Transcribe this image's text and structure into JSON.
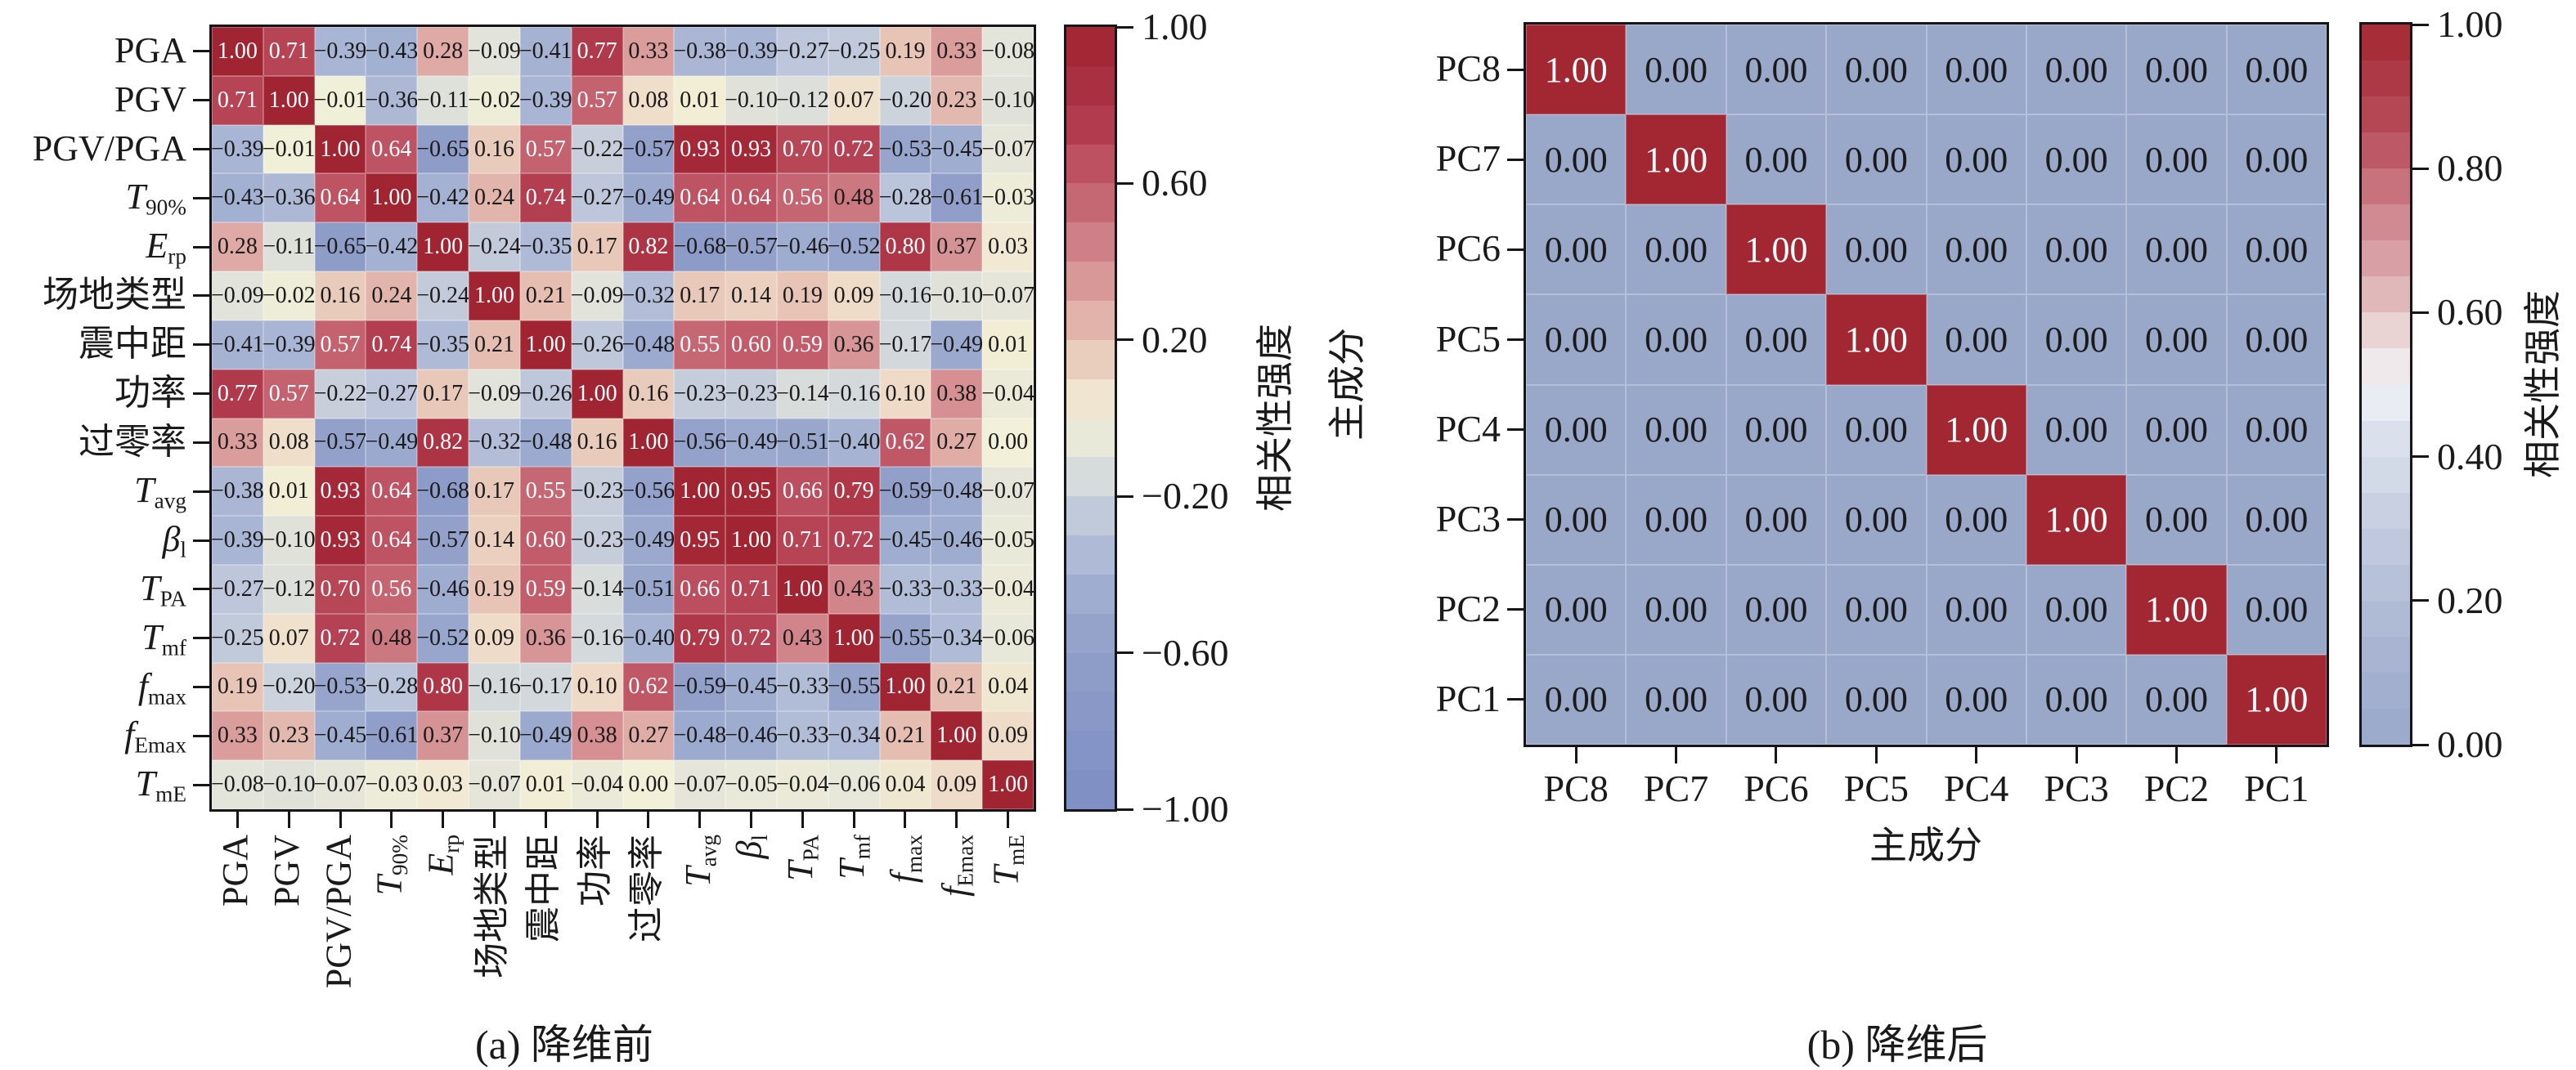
{
  "figure": {
    "caption_a": "(a) 降维前",
    "caption_b": "(b) 降维后",
    "colorbar_label_a": "相关性强度",
    "colorbar_label_b": "相关性强度",
    "xlabel_b": "主成分",
    "ylabel_b": "主成分"
  },
  "chart_data": [
    {
      "type": "heatmap",
      "title": "(a) 降维前",
      "colorbar_label": "相关性强度",
      "vmin": -1,
      "vmax": 1,
      "colorbar_ticks": [
        1.0,
        0.6,
        0.2,
        -0.2,
        -0.6,
        -1.0
      ],
      "white_text_min": 0.55,
      "colormap_anchors": [
        [
          -1.0,
          "#7e8ec4"
        ],
        [
          -0.6,
          "#909ec9"
        ],
        [
          -0.45,
          "#9fadd0"
        ],
        [
          -0.3,
          "#b6c0d9"
        ],
        [
          -0.2,
          "#ccd3dc"
        ],
        [
          -0.1,
          "#e0e2da"
        ],
        [
          0.0,
          "#f2f0d8"
        ],
        [
          0.1,
          "#eedac7"
        ],
        [
          0.2,
          "#e6c1b3"
        ],
        [
          0.3,
          "#dda4a1"
        ],
        [
          0.45,
          "#cf7f87"
        ],
        [
          0.6,
          "#c25b6a"
        ],
        [
          0.75,
          "#b23c4e"
        ],
        [
          0.9,
          "#a52a39"
        ],
        [
          1.0,
          "#a02431"
        ]
      ],
      "axis_labels": [
        [
          "PGA",
          "",
          0
        ],
        [
          "PGV",
          "",
          0
        ],
        [
          "PGV/PGA",
          "",
          0
        ],
        [
          "T",
          "90%",
          1
        ],
        [
          "E",
          "rp",
          1
        ],
        [
          "场地类型",
          "",
          0
        ],
        [
          "震中距",
          "",
          0
        ],
        [
          "功率",
          "",
          0
        ],
        [
          "过零率",
          "",
          0
        ],
        [
          "T",
          "avg",
          1
        ],
        [
          "β",
          "l",
          1
        ],
        [
          "T",
          "PA",
          1
        ],
        [
          "T",
          "mf",
          1
        ],
        [
          "f",
          "max",
          1
        ],
        [
          "f",
          "Emax",
          1
        ],
        [
          "T",
          "mE",
          1
        ]
      ],
      "matrix": [
        [
          1.0,
          0.71,
          -0.39,
          -0.43,
          0.28,
          -0.09,
          -0.41,
          0.77,
          0.33,
          -0.38,
          -0.39,
          -0.27,
          -0.25,
          0.19,
          0.33,
          -0.08
        ],
        [
          0.71,
          1.0,
          -0.01,
          -0.36,
          -0.11,
          -0.02,
          -0.39,
          0.57,
          0.08,
          0.01,
          -0.1,
          -0.12,
          0.07,
          -0.2,
          0.23,
          -0.1
        ],
        [
          -0.39,
          -0.01,
          1.0,
          0.64,
          -0.65,
          0.16,
          0.57,
          -0.22,
          -0.57,
          0.93,
          0.93,
          0.7,
          0.72,
          -0.53,
          -0.45,
          -0.07
        ],
        [
          -0.43,
          -0.36,
          0.64,
          1.0,
          -0.42,
          0.24,
          0.74,
          -0.27,
          -0.49,
          0.64,
          0.64,
          0.56,
          0.48,
          -0.28,
          -0.61,
          -0.03
        ],
        [
          0.28,
          -0.11,
          -0.65,
          -0.42,
          1.0,
          -0.24,
          -0.35,
          0.17,
          0.82,
          -0.68,
          -0.57,
          -0.46,
          -0.52,
          0.8,
          0.37,
          0.03
        ],
        [
          -0.09,
          -0.02,
          0.16,
          0.24,
          -0.24,
          1.0,
          0.21,
          -0.09,
          -0.32,
          0.17,
          0.14,
          0.19,
          0.09,
          -0.16,
          -0.1,
          -0.07
        ],
        [
          -0.41,
          -0.39,
          0.57,
          0.74,
          -0.35,
          0.21,
          1.0,
          -0.26,
          -0.48,
          0.55,
          0.6,
          0.59,
          0.36,
          -0.17,
          -0.49,
          0.01
        ],
        [
          0.77,
          0.57,
          -0.22,
          -0.27,
          0.17,
          -0.09,
          -0.26,
          1.0,
          0.16,
          -0.23,
          -0.23,
          -0.14,
          -0.16,
          0.1,
          0.38,
          -0.04
        ],
        [
          0.33,
          0.08,
          -0.57,
          -0.49,
          0.82,
          -0.32,
          -0.48,
          0.16,
          1.0,
          -0.56,
          -0.49,
          -0.51,
          -0.4,
          0.62,
          0.27,
          0.0
        ],
        [
          -0.38,
          0.01,
          0.93,
          0.64,
          -0.68,
          0.17,
          0.55,
          -0.23,
          -0.56,
          1.0,
          0.95,
          0.66,
          0.79,
          -0.59,
          -0.48,
          -0.07
        ],
        [
          -0.39,
          -0.1,
          0.93,
          0.64,
          -0.57,
          0.14,
          0.6,
          -0.23,
          -0.49,
          0.95,
          1.0,
          0.71,
          0.72,
          -0.45,
          -0.46,
          -0.05
        ],
        [
          -0.27,
          -0.12,
          0.7,
          0.56,
          -0.46,
          0.19,
          0.59,
          -0.14,
          -0.51,
          0.66,
          0.71,
          1.0,
          0.43,
          -0.33,
          -0.33,
          -0.04
        ],
        [
          -0.25,
          0.07,
          0.72,
          0.48,
          -0.52,
          0.09,
          0.36,
          -0.16,
          -0.4,
          0.79,
          0.72,
          0.43,
          1.0,
          -0.55,
          -0.34,
          -0.06
        ],
        [
          0.19,
          -0.2,
          -0.53,
          -0.28,
          0.8,
          -0.16,
          -0.17,
          0.1,
          0.62,
          -0.59,
          -0.45,
          -0.33,
          -0.55,
          1.0,
          0.21,
          0.04
        ],
        [
          0.33,
          0.23,
          -0.45,
          -0.61,
          0.37,
          -0.1,
          -0.49,
          0.38,
          0.27,
          -0.48,
          -0.46,
          -0.33,
          -0.34,
          0.21,
          1.0,
          0.09
        ],
        [
          -0.08,
          -0.1,
          -0.07,
          -0.03,
          0.03,
          -0.07,
          0.01,
          -0.04,
          0.0,
          -0.07,
          -0.05,
          -0.04,
          -0.06,
          0.04,
          0.09,
          1.0
        ]
      ]
    },
    {
      "type": "heatmap",
      "title": "(b) 降维后",
      "colorbar_label": "相关性强度",
      "xlabel": "主成分",
      "ylabel": "主成分",
      "vmin": 0,
      "vmax": 1,
      "colorbar_ticks": [
        1.0,
        0.8,
        0.6,
        0.4,
        0.2,
        0.0
      ],
      "white_text_min": 0.95,
      "colormap_anchors": [
        [
          0.0,
          "#99a7c9"
        ],
        [
          0.15,
          "#abb6d3"
        ],
        [
          0.3,
          "#c3cce0"
        ],
        [
          0.45,
          "#e0e5ee"
        ],
        [
          0.5,
          "#f1f2f6"
        ],
        [
          0.55,
          "#efe0df"
        ],
        [
          0.65,
          "#dcabae"
        ],
        [
          0.75,
          "#cc7f88"
        ],
        [
          0.85,
          "#b84c5b"
        ],
        [
          1.0,
          "#a32732"
        ]
      ],
      "axis_labels": [
        [
          "PC8",
          "",
          0
        ],
        [
          "PC7",
          "",
          0
        ],
        [
          "PC6",
          "",
          0
        ],
        [
          "PC5",
          "",
          0
        ],
        [
          "PC4",
          "",
          0
        ],
        [
          "PC3",
          "",
          0
        ],
        [
          "PC2",
          "",
          0
        ],
        [
          "PC1",
          "",
          0
        ]
      ],
      "matrix": [
        [
          1.0,
          0.0,
          0.0,
          0.0,
          0.0,
          0.0,
          0.0,
          0.0
        ],
        [
          0.0,
          1.0,
          0.0,
          0.0,
          0.0,
          0.0,
          0.0,
          0.0
        ],
        [
          0.0,
          0.0,
          1.0,
          0.0,
          0.0,
          0.0,
          0.0,
          0.0
        ],
        [
          0.0,
          0.0,
          0.0,
          1.0,
          0.0,
          0.0,
          0.0,
          0.0
        ],
        [
          0.0,
          0.0,
          0.0,
          0.0,
          1.0,
          0.0,
          0.0,
          0.0
        ],
        [
          0.0,
          0.0,
          0.0,
          0.0,
          0.0,
          1.0,
          0.0,
          0.0
        ],
        [
          0.0,
          0.0,
          0.0,
          0.0,
          0.0,
          0.0,
          1.0,
          0.0
        ],
        [
          0.0,
          0.0,
          0.0,
          0.0,
          0.0,
          0.0,
          0.0,
          1.0
        ]
      ]
    }
  ]
}
